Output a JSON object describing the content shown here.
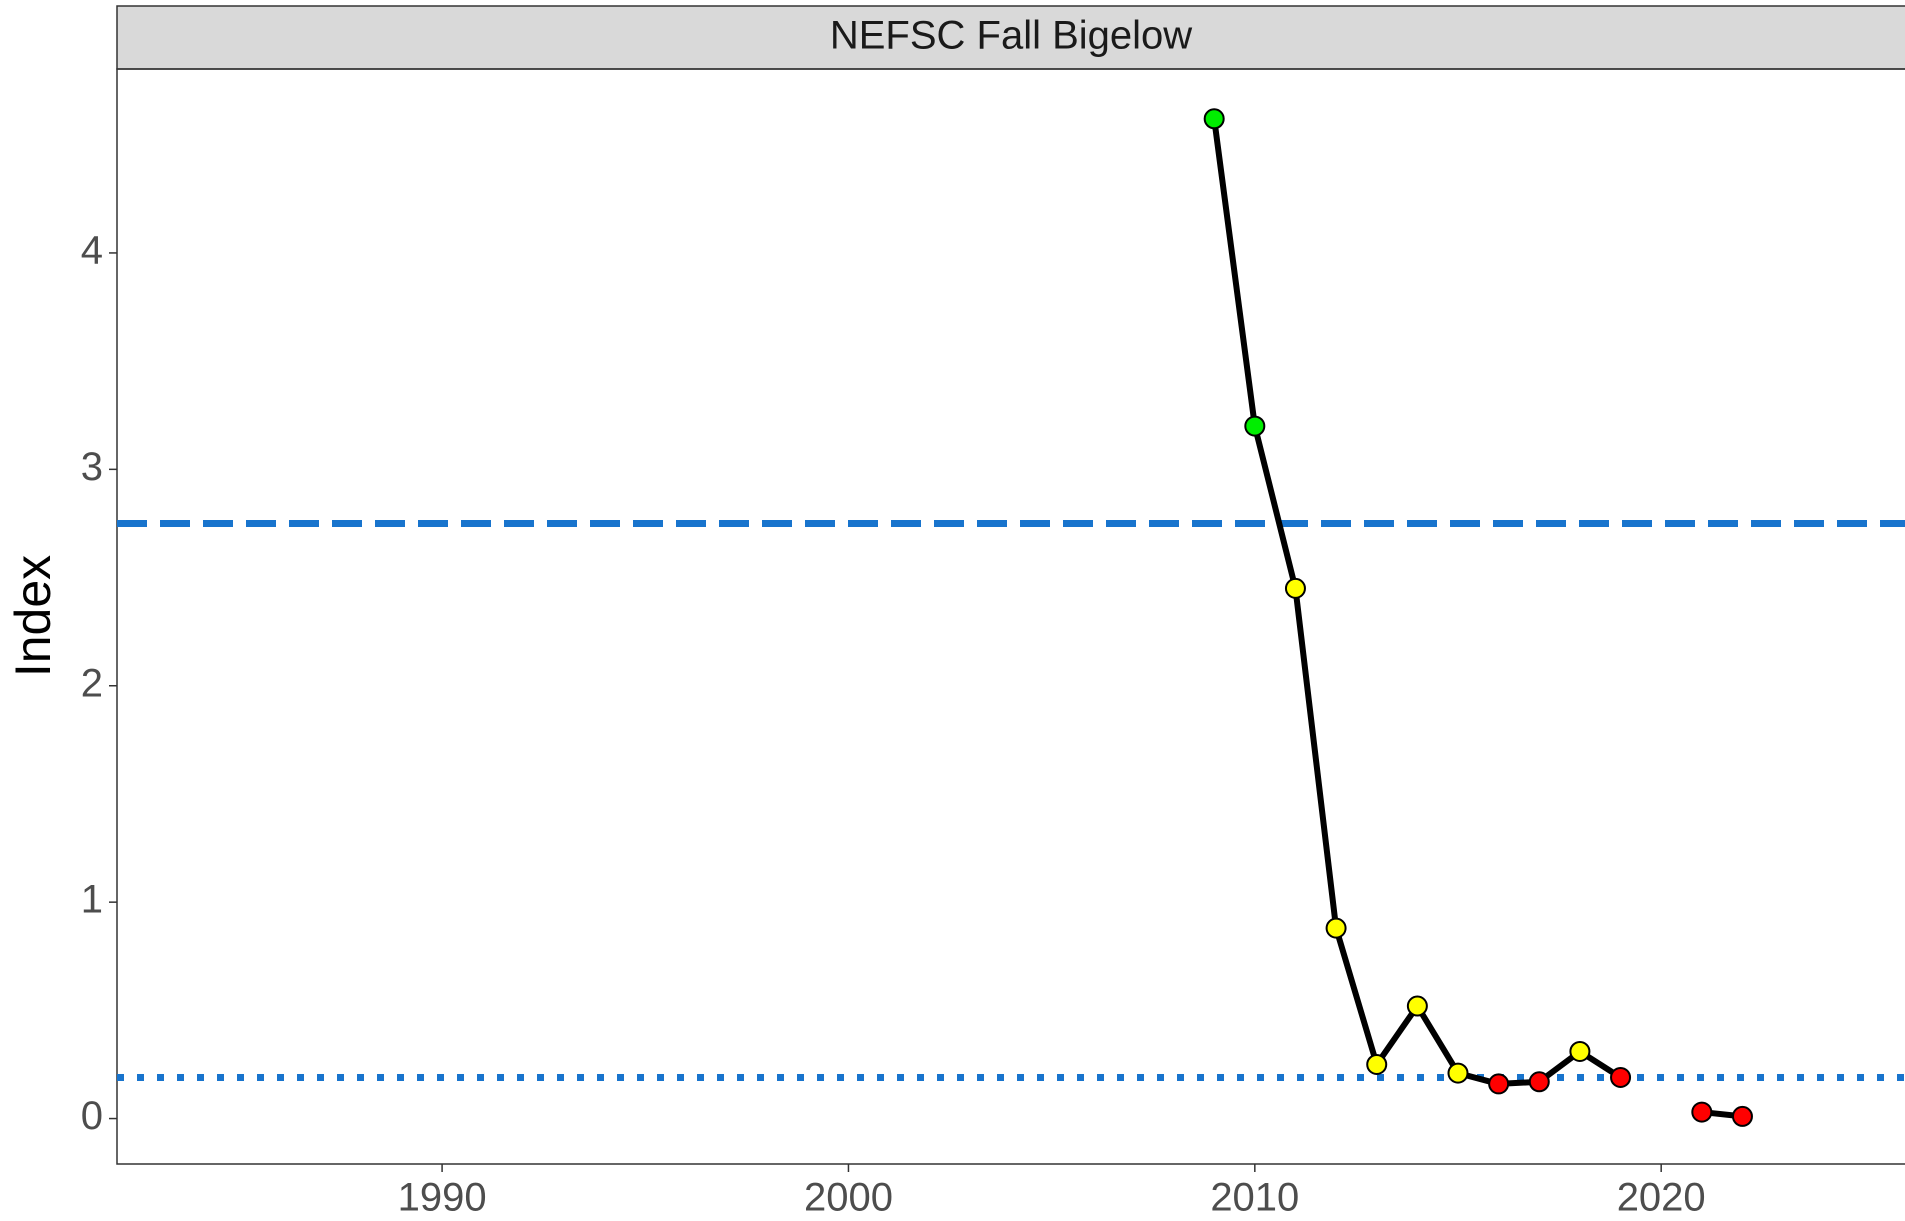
{
  "chart_data": {
    "type": "line",
    "title": "NEFSC Fall Bigelow",
    "y_label": "Index",
    "x": [
      2009,
      2010,
      2011,
      2012,
      2013,
      2014,
      2015,
      2016,
      2017,
      2018,
      2019,
      2020,
      2021,
      2022
    ],
    "series": [
      {
        "color": "#000000",
        "values": [
          4.62,
          3.2,
          2.45,
          0.88,
          0.25,
          0.52,
          0.21,
          0.16,
          0.17,
          0.31,
          0.19,
          null,
          0.03,
          0.01
        ],
        "point_colors": [
          "#00ee00",
          "#00ee00",
          "#ffff00",
          "#ffff00",
          "#ffff00",
          "#ffff00",
          "#ffff00",
          "#ff0000",
          "#ff0000",
          "#ffff00",
          "#ff0000",
          null,
          "#ff0000",
          "#ff0000"
        ]
      }
    ],
    "hlines": [
      {
        "value": 2.75,
        "style": "dashed",
        "color": "#1874cd"
      },
      {
        "value": 0.19,
        "style": "dotted",
        "color": "#1874cd"
      }
    ],
    "xlim": [
      1982,
      2026
    ],
    "xticks": [
      1990,
      2000,
      2010,
      2020
    ],
    "ylim": [
      -0.21,
      4.85
    ],
    "yticks": [
      0,
      1,
      2,
      3,
      4
    ],
    "grid": false
  }
}
